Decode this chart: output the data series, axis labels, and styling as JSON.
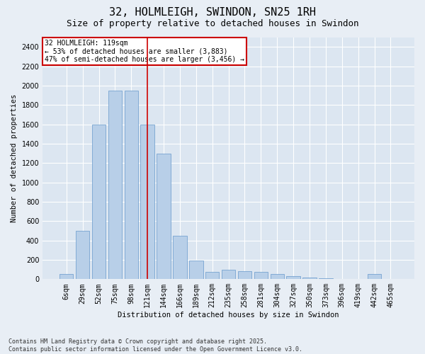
{
  "title": "32, HOLMLEIGH, SWINDON, SN25 1RH",
  "subtitle": "Size of property relative to detached houses in Swindon",
  "xlabel": "Distribution of detached houses by size in Swindon",
  "ylabel": "Number of detached properties",
  "categories": [
    "6sqm",
    "29sqm",
    "52sqm",
    "75sqm",
    "98sqm",
    "121sqm",
    "144sqm",
    "166sqm",
    "189sqm",
    "212sqm",
    "235sqm",
    "258sqm",
    "281sqm",
    "304sqm",
    "327sqm",
    "350sqm",
    "373sqm",
    "396sqm",
    "419sqm",
    "442sqm",
    "465sqm"
  ],
  "values": [
    50,
    500,
    1600,
    1950,
    1950,
    1600,
    1300,
    450,
    195,
    75,
    100,
    80,
    75,
    50,
    30,
    20,
    10,
    5,
    0,
    50,
    5
  ],
  "bar_color": "#b8cfe8",
  "bar_edge_color": "#6699cc",
  "bar_width": 0.85,
  "vline_x": 5,
  "vline_color": "#cc0000",
  "ylim": [
    0,
    2500
  ],
  "yticks": [
    0,
    200,
    400,
    600,
    800,
    1000,
    1200,
    1400,
    1600,
    1800,
    2000,
    2200,
    2400
  ],
  "annotation_title": "32 HOLMLEIGH: 119sqm",
  "annotation_line1": "← 53% of detached houses are smaller (3,883)",
  "annotation_line2": "47% of semi-detached houses are larger (3,456) →",
  "annotation_box_color": "#cc0000",
  "bg_color": "#e8eef5",
  "plot_bg_color": "#dce6f1",
  "grid_color": "#ffffff",
  "footer1": "Contains HM Land Registry data © Crown copyright and database right 2025.",
  "footer2": "Contains public sector information licensed under the Open Government Licence v3.0.",
  "title_fontsize": 11,
  "subtitle_fontsize": 9,
  "axis_label_fontsize": 7.5,
  "tick_fontsize": 7,
  "annotation_fontsize": 7,
  "footer_fontsize": 6,
  "ylabel_fontsize": 7.5
}
